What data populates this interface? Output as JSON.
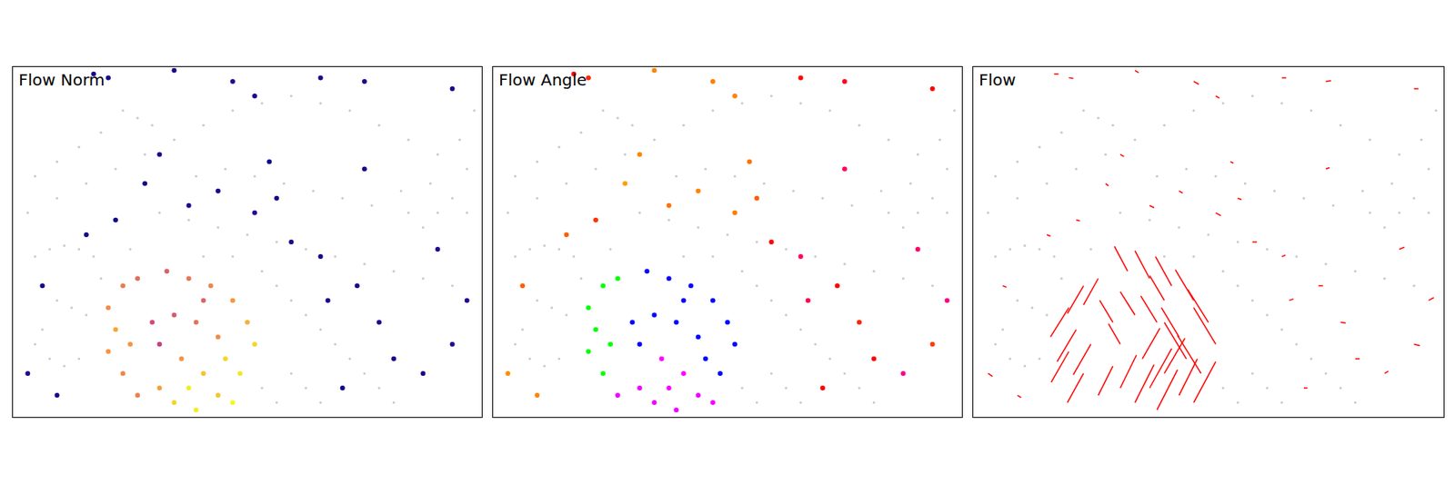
{
  "chart_data": {
    "type": "panels",
    "xlim": [
      0,
      640
    ],
    "ylim": [
      480,
      0
    ],
    "tick_labels": false,
    "background": {
      "color": "#c8c8c8",
      "x": [
        30,
        50,
        70,
        90,
        110,
        60,
        80,
        100,
        40,
        30,
        50,
        70,
        90,
        20,
        60,
        100,
        140,
        180,
        220,
        260,
        300,
        340,
        380,
        420,
        460,
        500,
        540,
        580,
        620,
        200,
        240,
        280,
        320,
        360,
        400,
        440,
        480,
        520,
        560,
        600,
        340,
        360,
        380,
        400,
        420,
        440,
        460,
        480,
        500,
        520,
        380,
        400,
        420,
        360,
        340,
        540,
        560,
        580,
        600,
        620,
        150,
        170,
        190,
        120,
        90,
        60,
        30,
        250,
        290,
        330,
        370,
        410,
        450,
        490,
        530,
        570,
        610,
        630,
        260,
        300,
        160,
        120
      ],
      "y": [
        260,
        250,
        245,
        250,
        260,
        320,
        330,
        340,
        360,
        380,
        400,
        410,
        400,
        200,
        180,
        160,
        140,
        120,
        100,
        80,
        60,
        50,
        40,
        50,
        60,
        80,
        100,
        120,
        140,
        200,
        210,
        220,
        230,
        240,
        250,
        260,
        270,
        280,
        290,
        300,
        280,
        300,
        320,
        340,
        360,
        380,
        400,
        420,
        440,
        460,
        420,
        440,
        460,
        460,
        440,
        200,
        220,
        200,
        180,
        200,
        60,
        70,
        80,
        90,
        110,
        130,
        150,
        150,
        140,
        150,
        160,
        170,
        180,
        190,
        170,
        160,
        100,
        60,
        260,
        260,
        250,
        290
      ]
    },
    "events": {
      "x": [
        130,
        150,
        170,
        210,
        240,
        270,
        300,
        320,
        330,
        310,
        280,
        250,
        220,
        200,
        160,
        140,
        190,
        220,
        250,
        280,
        230,
        260,
        290,
        200,
        170,
        240,
        300,
        150,
        130,
        260,
        110,
        130,
        220,
        300,
        330,
        420,
        480,
        600,
        240,
        280,
        330,
        360,
        380,
        420,
        470,
        500,
        520,
        560,
        600,
        620,
        40,
        20,
        60,
        100,
        180,
        140,
        430,
        450,
        580,
        350,
        480,
        200
      ],
      "y": [
        330,
        300,
        290,
        280,
        290,
        300,
        320,
        350,
        380,
        420,
        450,
        470,
        460,
        440,
        380,
        360,
        350,
        340,
        350,
        370,
        400,
        420,
        400,
        380,
        450,
        440,
        460,
        420,
        390,
        320,
        10,
        15,
        5,
        20,
        40,
        15,
        20,
        30,
        190,
        170,
        200,
        180,
        240,
        260,
        300,
        350,
        400,
        420,
        380,
        320,
        300,
        420,
        450,
        230,
        160,
        210,
        320,
        440,
        250,
        130,
        140,
        120
      ],
      "u": [
        -25,
        -22,
        -20,
        -18,
        -20,
        -22,
        -25,
        -28,
        -30,
        -32,
        25,
        28,
        26,
        22,
        -24,
        -26,
        -18,
        -20,
        -22,
        -24,
        24,
        28,
        -30,
        -16,
        20,
        30,
        30,
        -22,
        -24,
        -20,
        6,
        6,
        5,
        7,
        5,
        6,
        7,
        6,
        6,
        5,
        7,
        5,
        6,
        5,
        6,
        7,
        6,
        5,
        8,
        7,
        5,
        6,
        5,
        5,
        4,
        5,
        6,
        5,
        7,
        4,
        5,
        5
      ],
      "v": [
        40,
        38,
        36,
        -34,
        -38,
        -40,
        -42,
        -45,
        -50,
        -52,
        -50,
        -55,
        -52,
        -45,
        42,
        44,
        -30,
        -32,
        -36,
        -40,
        -42,
        -48,
        -50,
        -28,
        -40,
        -54,
        -56,
        40,
        42,
        -34,
        0,
        1,
        3,
        4,
        3,
        0,
        -1,
        0,
        3,
        3,
        4,
        2,
        0,
        -2,
        0,
        1,
        0,
        -3,
        2,
        -4,
        2,
        4,
        3,
        2,
        3,
        1,
        -2,
        0,
        -3,
        2,
        -2,
        3
      ]
    },
    "panels": [
      {
        "title": "Flow Norm",
        "type": "norm"
      },
      {
        "title": "Flow Angle",
        "type": "angle"
      },
      {
        "title": "Flow",
        "type": "quiver",
        "color": "#ff0000"
      }
    ]
  }
}
